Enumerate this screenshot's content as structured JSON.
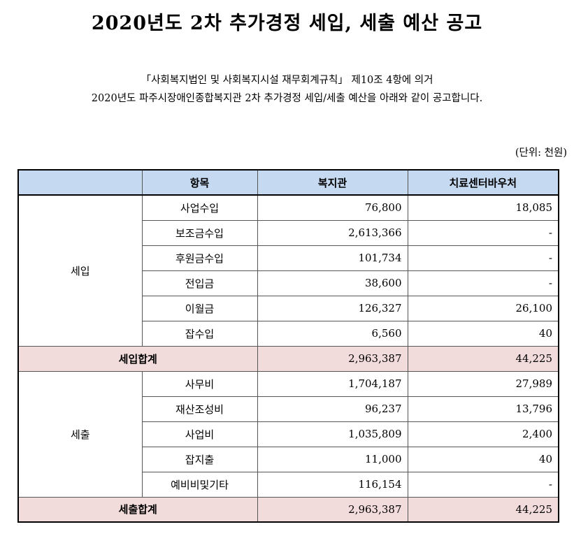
{
  "title": "2020년도 2차 추가경정 세입, 세출 예산 공고",
  "intro": {
    "line1": "「사회복지법인 및 사회복지시설 재무회계규칙」 제10조 4항에 의거",
    "line2": "2020년도 파주시장애인종합복지관 2차 추가경정 세입/세출 예산을 아래와 같이 공고합니다."
  },
  "unit": "(단위: 천원)",
  "table": {
    "headers": [
      "",
      "항목",
      "복지관",
      "치료센터바우처"
    ],
    "revenue": {
      "group": "세입",
      "rows": [
        {
          "item": "사업수입",
          "welfare": "76,800",
          "voucher": "18,085"
        },
        {
          "item": "보조금수입",
          "welfare": "2,613,366",
          "voucher": "-"
        },
        {
          "item": "후원금수입",
          "welfare": "101,734",
          "voucher": "-"
        },
        {
          "item": "전입금",
          "welfare": "38,600",
          "voucher": "-"
        },
        {
          "item": "이월금",
          "welfare": "126,327",
          "voucher": "26,100"
        },
        {
          "item": "잡수입",
          "welfare": "6,560",
          "voucher": "40"
        }
      ],
      "total": {
        "label": "세입합계",
        "welfare": "2,963,387",
        "voucher": "44,225"
      }
    },
    "expense": {
      "group": "세출",
      "rows": [
        {
          "item": "사무비",
          "welfare": "1,704,187",
          "voucher": "27,989"
        },
        {
          "item": "재산조성비",
          "welfare": "96,237",
          "voucher": "13,796"
        },
        {
          "item": "사업비",
          "welfare": "1,035,809",
          "voucher": "2,400"
        },
        {
          "item": "잡지출",
          "welfare": "11,000",
          "voucher": "40"
        },
        {
          "item": "예비비및기타",
          "welfare": "116,154",
          "voucher": "-"
        }
      ],
      "total": {
        "label": "세출합계",
        "welfare": "2,963,387",
        "voucher": "44,225"
      }
    }
  }
}
